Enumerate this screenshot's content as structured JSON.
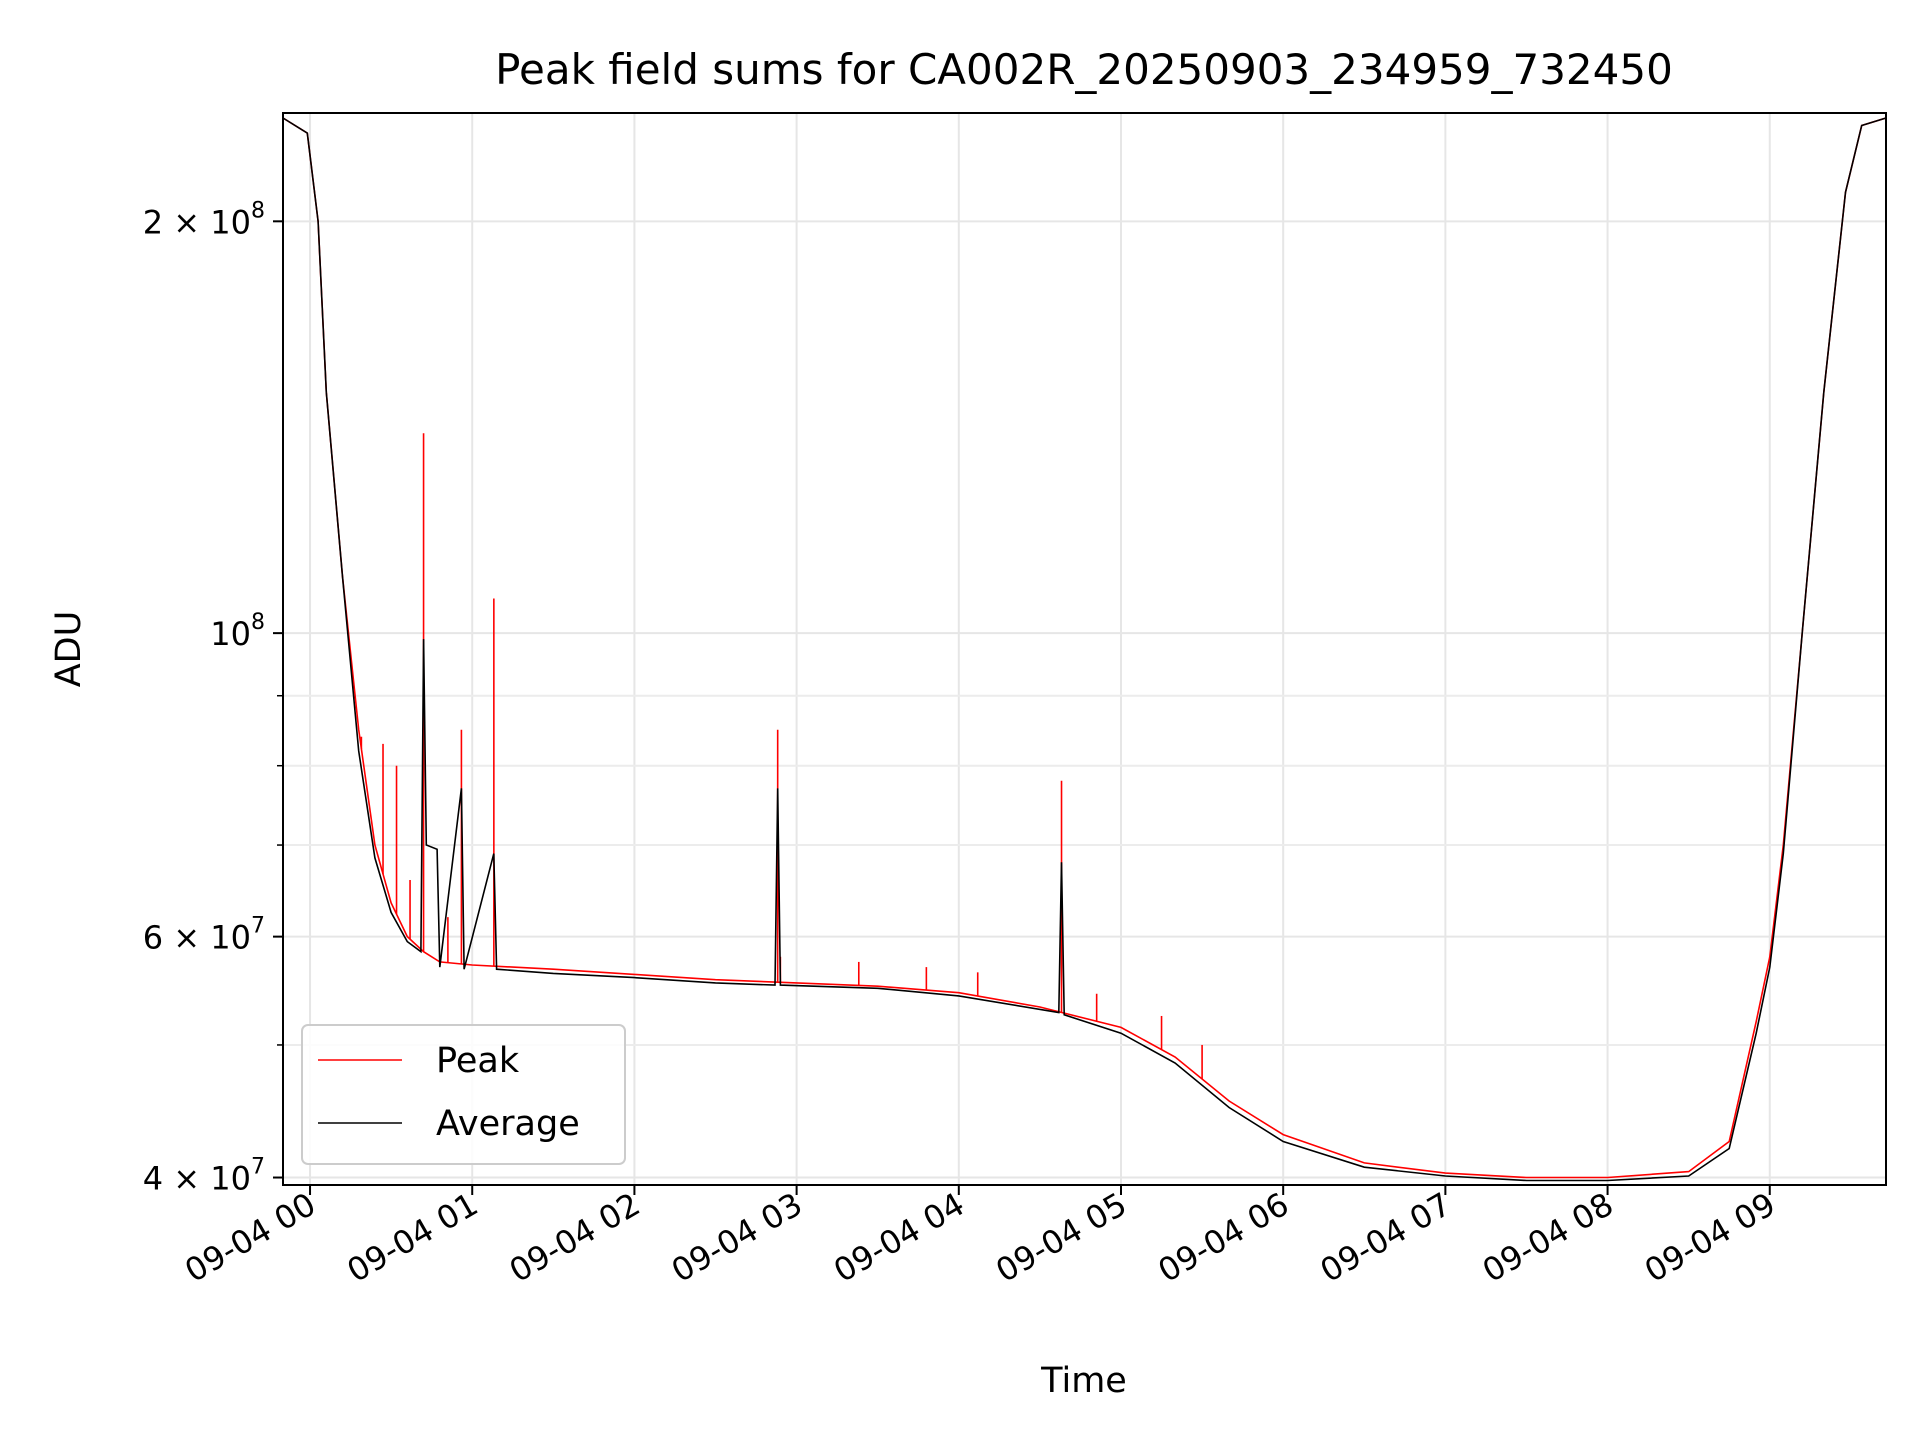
{
  "chart_data": {
    "type": "line",
    "title": "Peak field sums for CA002R_20250903_234959_732450",
    "xlabel": "Time",
    "ylabel": "ADU",
    "xscale": "time",
    "yscale": "log",
    "xlim": [
      "2025-09-03 23:50",
      "2025-09-04 09:43"
    ],
    "ylim": [
      39500000,
      240000000
    ],
    "grid": true,
    "legend": {
      "position": "lower-left"
    },
    "x_ticks": [
      {
        "value": "2025-09-04 00:00",
        "label": "09-04 00"
      },
      {
        "value": "2025-09-04 01:00",
        "label": "09-04 01"
      },
      {
        "value": "2025-09-04 02:00",
        "label": "09-04 02"
      },
      {
        "value": "2025-09-04 03:00",
        "label": "09-04 03"
      },
      {
        "value": "2025-09-04 04:00",
        "label": "09-04 04"
      },
      {
        "value": "2025-09-04 05:00",
        "label": "09-04 05"
      },
      {
        "value": "2025-09-04 06:00",
        "label": "09-04 06"
      },
      {
        "value": "2025-09-04 07:00",
        "label": "09-04 07"
      },
      {
        "value": "2025-09-04 08:00",
        "label": "09-04 08"
      },
      {
        "value": "2025-09-04 09:00",
        "label": "09-04 09"
      }
    ],
    "y_major_ticks": [
      {
        "value": 40000000,
        "base": "4 × 10",
        "exp": "7"
      },
      {
        "value": 60000000,
        "base": "6 × 10",
        "exp": "7"
      },
      {
        "value": 100000000,
        "base": "10",
        "exp": "8"
      },
      {
        "value": 200000000,
        "base": "2 × 10",
        "exp": "8"
      }
    ],
    "y_minor_ticks": [
      50000000,
      70000000,
      80000000,
      90000000
    ],
    "series": [
      {
        "name": "Peak",
        "color": "#ff0000",
        "points": [
          [
            "2025-09-03 23:50",
            238000000
          ],
          [
            "2025-09-03 23:59",
            232000000
          ],
          [
            "2025-09-04 00:03",
            200000000
          ],
          [
            "2025-09-04 00:06",
            150000000
          ],
          [
            "2025-09-04 00:12",
            110000000
          ],
          [
            "2025-09-04 00:18",
            85000000
          ],
          [
            "2025-09-04 00:24",
            70000000
          ],
          [
            "2025-09-04 00:30",
            63500000
          ],
          [
            "2025-09-04 00:36",
            60000000
          ],
          [
            "2025-09-04 00:42",
            58500000
          ],
          [
            "2025-09-04 00:48",
            57500000
          ],
          [
            "2025-09-04 01:00",
            57200000
          ],
          [
            "2025-09-04 01:30",
            56800000
          ],
          [
            "2025-09-04 02:00",
            56300000
          ],
          [
            "2025-09-04 02:30",
            55800000
          ],
          [
            "2025-09-04 03:00",
            55500000
          ],
          [
            "2025-09-04 03:30",
            55200000
          ],
          [
            "2025-09-04 04:00",
            54600000
          ],
          [
            "2025-09-04 04:30",
            53300000
          ],
          [
            "2025-09-04 05:00",
            51500000
          ],
          [
            "2025-09-04 05:20",
            49000000
          ],
          [
            "2025-09-04 05:40",
            45500000
          ],
          [
            "2025-09-04 06:00",
            43000000
          ],
          [
            "2025-09-04 06:30",
            41000000
          ],
          [
            "2025-09-04 07:00",
            40300000
          ],
          [
            "2025-09-04 07:30",
            40000000
          ],
          [
            "2025-09-04 08:00",
            40000000
          ],
          [
            "2025-09-04 08:30",
            40400000
          ],
          [
            "2025-09-04 08:45",
            42500000
          ],
          [
            "2025-09-04 08:55",
            52000000
          ],
          [
            "2025-09-04 09:00",
            58000000
          ],
          [
            "2025-09-04 09:05",
            70000000
          ],
          [
            "2025-09-04 09:12",
            100000000
          ],
          [
            "2025-09-04 09:20",
            150000000
          ],
          [
            "2025-09-04 09:28",
            210000000
          ],
          [
            "2025-09-04 09:34",
            235000000
          ],
          [
            "2025-09-04 09:43",
            238000000
          ]
        ],
        "spikes": [
          [
            "2025-09-04 00:19",
            84000000
          ],
          [
            "2025-09-04 00:27",
            83000000
          ],
          [
            "2025-09-04 00:32",
            80000000
          ],
          [
            "2025-09-04 00:37",
            66000000
          ],
          [
            "2025-09-04 00:42",
            140000000
          ],
          [
            "2025-09-04 00:51",
            62000000
          ],
          [
            "2025-09-04 00:56",
            85000000
          ],
          [
            "2025-09-04 01:08",
            106000000
          ],
          [
            "2025-09-04 02:53",
            85000000
          ],
          [
            "2025-09-04 02:54",
            58000000
          ],
          [
            "2025-09-04 03:23",
            57500000
          ],
          [
            "2025-09-04 03:48",
            57000000
          ],
          [
            "2025-09-04 04:07",
            56500000
          ],
          [
            "2025-09-04 04:38",
            78000000
          ],
          [
            "2025-09-04 04:51",
            54500000
          ],
          [
            "2025-09-04 05:15",
            52500000
          ],
          [
            "2025-09-04 05:30",
            50000000
          ]
        ]
      },
      {
        "name": "Average",
        "color": "#000000",
        "points": [
          [
            "2025-09-03 23:50",
            238000000
          ],
          [
            "2025-09-03 23:59",
            232000000
          ],
          [
            "2025-09-04 00:03",
            200000000
          ],
          [
            "2025-09-04 00:06",
            150000000
          ],
          [
            "2025-09-04 00:12",
            110000000
          ],
          [
            "2025-09-04 00:18",
            82000000
          ],
          [
            "2025-09-04 00:24",
            68500000
          ],
          [
            "2025-09-04 00:30",
            62500000
          ],
          [
            "2025-09-04 00:36",
            59500000
          ],
          [
            "2025-09-04 00:41",
            58500000
          ],
          [
            "2025-09-04 00:42",
            99000000
          ],
          [
            "2025-09-04 00:43",
            70000000
          ],
          [
            "2025-09-04 00:47",
            69500000
          ],
          [
            "2025-09-04 00:48",
            57000000
          ],
          [
            "2025-09-04 00:56",
            77000000
          ],
          [
            "2025-09-04 00:57",
            56800000
          ],
          [
            "2025-09-04 01:08",
            69000000
          ],
          [
            "2025-09-04 01:09",
            56800000
          ],
          [
            "2025-09-04 01:30",
            56400000
          ],
          [
            "2025-09-04 02:00",
            56000000
          ],
          [
            "2025-09-04 02:30",
            55500000
          ],
          [
            "2025-09-04 02:52",
            55300000
          ],
          [
            "2025-09-04 02:53",
            77000000
          ],
          [
            "2025-09-04 02:54",
            55300000
          ],
          [
            "2025-09-04 03:30",
            55000000
          ],
          [
            "2025-09-04 04:00",
            54300000
          ],
          [
            "2025-09-04 04:37",
            52800000
          ],
          [
            "2025-09-04 04:38",
            68000000
          ],
          [
            "2025-09-04 04:39",
            52600000
          ],
          [
            "2025-09-04 05:00",
            51000000
          ],
          [
            "2025-09-04 05:20",
            48500000
          ],
          [
            "2025-09-04 05:40",
            45000000
          ],
          [
            "2025-09-04 06:00",
            42500000
          ],
          [
            "2025-09-04 06:30",
            40700000
          ],
          [
            "2025-09-04 07:00",
            40100000
          ],
          [
            "2025-09-04 07:30",
            39800000
          ],
          [
            "2025-09-04 08:00",
            39800000
          ],
          [
            "2025-09-04 08:30",
            40100000
          ],
          [
            "2025-09-04 08:45",
            42000000
          ],
          [
            "2025-09-04 08:55",
            51000000
          ],
          [
            "2025-09-04 09:00",
            57000000
          ],
          [
            "2025-09-04 09:05",
            69000000
          ],
          [
            "2025-09-04 09:12",
            100000000
          ],
          [
            "2025-09-04 09:20",
            150000000
          ],
          [
            "2025-09-04 09:28",
            210000000
          ],
          [
            "2025-09-04 09:34",
            235000000
          ],
          [
            "2025-09-04 09:43",
            238000000
          ]
        ]
      }
    ]
  }
}
